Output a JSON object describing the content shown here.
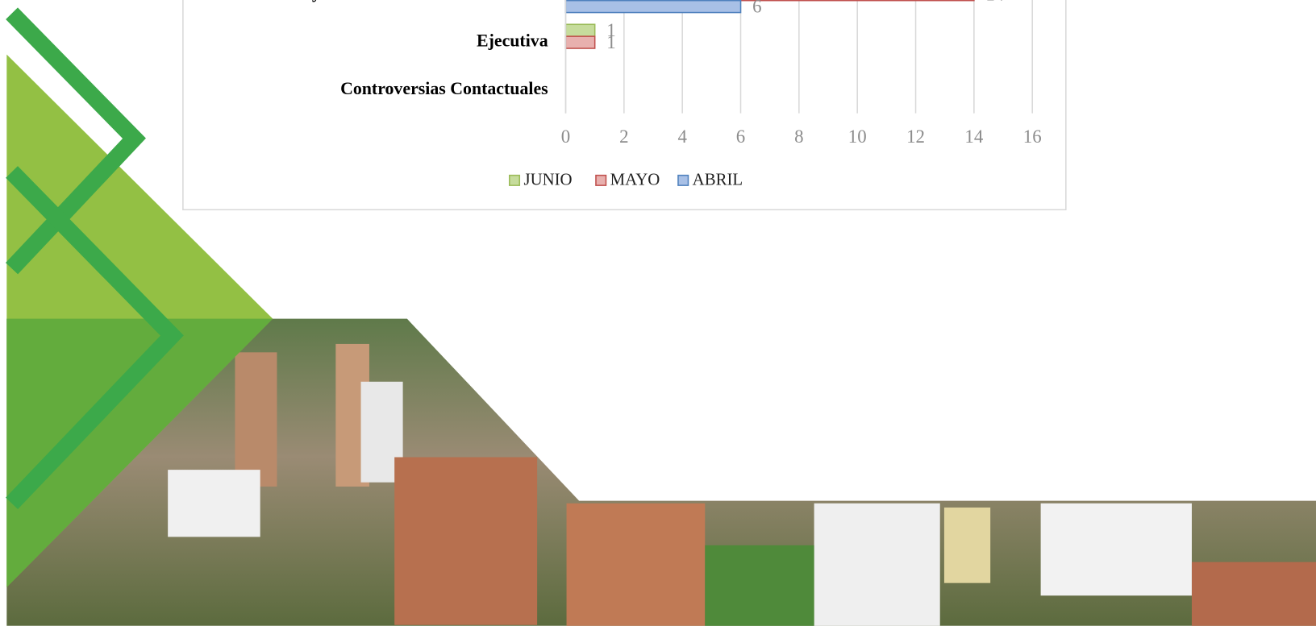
{
  "chart_data": {
    "type": "bar",
    "orientation": "horizontal",
    "categories": [
      "Nulidad y Restablecimiento del Derecho",
      "Ejecutiva",
      "Controversias Contactuales"
    ],
    "series": [
      {
        "name": "JUNIO",
        "color": "#9bbb59",
        "values": [
          null,
          1,
          null
        ]
      },
      {
        "name": "MAYO",
        "color": "#c0504d",
        "values": [
          14,
          1,
          null
        ]
      },
      {
        "name": "ABRIL",
        "color": "#4f81bd",
        "values": [
          6,
          null,
          null
        ]
      }
    ],
    "xlim": [
      0,
      16
    ],
    "xticks": [
      0,
      2,
      4,
      6,
      8,
      10,
      12,
      14,
      16
    ],
    "grid": true,
    "legend": "bottom"
  }
}
